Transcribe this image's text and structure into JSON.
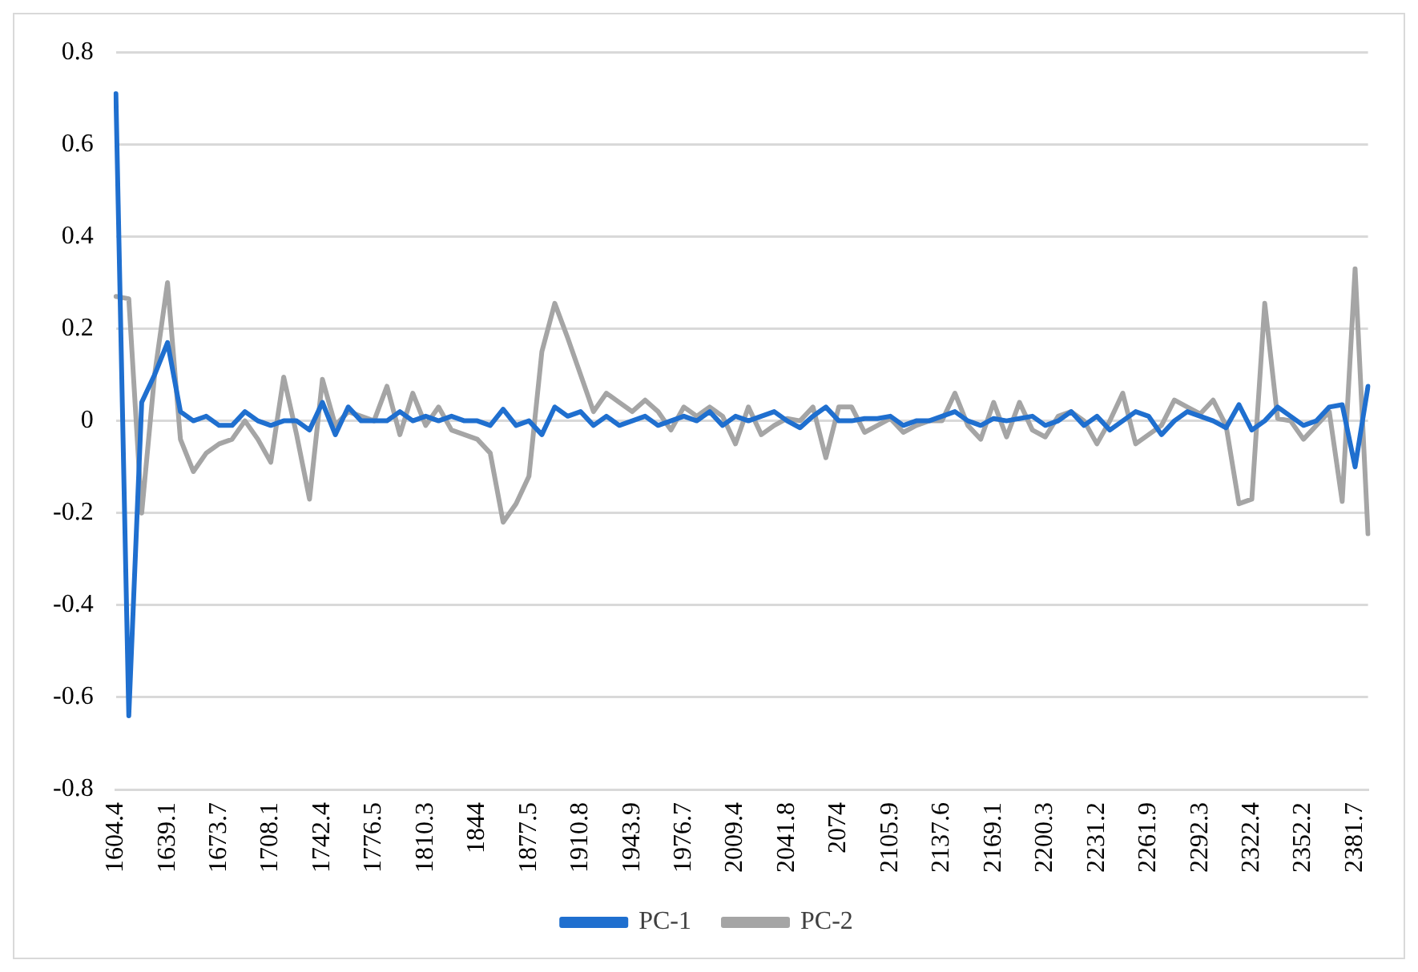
{
  "chart_data": {
    "type": "line",
    "categories": [
      "1604.4",
      null,
      null,
      null,
      "1639.1",
      null,
      null,
      null,
      "1673.7",
      null,
      null,
      null,
      "1708.1",
      null,
      null,
      null,
      "1742.4",
      null,
      null,
      null,
      "1776.5",
      null,
      null,
      null,
      "1810.3",
      null,
      null,
      null,
      "1844",
      null,
      null,
      null,
      "1877.5",
      null,
      null,
      null,
      "1910.8",
      null,
      null,
      null,
      "1943.9",
      null,
      null,
      null,
      "1976.7",
      null,
      null,
      null,
      "2009.4",
      null,
      null,
      null,
      "2041.8",
      null,
      null,
      null,
      "2074",
      null,
      null,
      null,
      "2105.9",
      null,
      null,
      null,
      "2137.6",
      null,
      null,
      null,
      "2169.1",
      null,
      null,
      null,
      "2200.3",
      null,
      null,
      null,
      "2231.2",
      null,
      null,
      null,
      "2261.9",
      null,
      null,
      null,
      "2292.3",
      null,
      null,
      null,
      "2322.4",
      null,
      null,
      null,
      "2352.2",
      null,
      null,
      null,
      "2381.7",
      null
    ],
    "series": [
      {
        "name": "PC-1",
        "color": "#1f6fcf",
        "values": [
          0.71,
          -0.64,
          0.04,
          0.1,
          0.17,
          0.02,
          0.0,
          0.01,
          -0.01,
          -0.01,
          0.02,
          0.0,
          -0.01,
          0.0,
          0.0,
          -0.02,
          0.04,
          -0.03,
          0.03,
          0.0,
          0.0,
          0.0,
          0.02,
          0.0,
          0.01,
          0.0,
          0.01,
          0.0,
          0.0,
          -0.01,
          0.025,
          -0.01,
          0.0,
          -0.03,
          0.03,
          0.01,
          0.02,
          -0.01,
          0.01,
          -0.01,
          0.0,
          0.01,
          -0.01,
          0.0,
          0.01,
          0.0,
          0.02,
          -0.01,
          0.01,
          0.0,
          0.01,
          0.02,
          0.0,
          -0.015,
          0.01,
          0.03,
          0.0,
          0.0,
          0.005,
          0.005,
          0.01,
          -0.01,
          0.0,
          0.0,
          0.01,
          0.02,
          0.0,
          -0.01,
          0.005,
          0.0,
          0.005,
          0.01,
          -0.01,
          0.0,
          0.02,
          -0.01,
          0.01,
          -0.02,
          0.0,
          0.02,
          0.01,
          -0.03,
          0.0,
          0.02,
          0.01,
          0.0,
          -0.015,
          0.035,
          -0.02,
          0.0,
          0.03,
          0.01,
          -0.01,
          0.0,
          0.03,
          0.035,
          -0.1,
          0.075
        ]
      },
      {
        "name": "PC-2",
        "color": "#a5a5a5",
        "values": [
          0.27,
          0.265,
          -0.2,
          0.1,
          0.3,
          -0.04,
          -0.11,
          -0.07,
          -0.05,
          -0.04,
          0.0,
          -0.04,
          -0.09,
          0.095,
          -0.03,
          -0.17,
          0.09,
          -0.01,
          0.02,
          0.01,
          0.0,
          0.075,
          -0.03,
          0.06,
          -0.01,
          0.03,
          -0.02,
          -0.03,
          -0.04,
          -0.07,
          -0.22,
          -0.18,
          -0.12,
          0.15,
          0.255,
          0.18,
          0.1,
          0.02,
          0.06,
          0.04,
          0.02,
          0.045,
          0.02,
          -0.02,
          0.03,
          0.01,
          0.03,
          0.01,
          -0.05,
          0.03,
          -0.03,
          -0.01,
          0.005,
          0.0,
          0.03,
          -0.08,
          0.03,
          0.03,
          -0.025,
          -0.01,
          0.005,
          -0.025,
          -0.01,
          0.0,
          0.0,
          0.06,
          -0.01,
          -0.04,
          0.04,
          -0.035,
          0.04,
          -0.02,
          -0.035,
          0.01,
          0.02,
          0.0,
          -0.05,
          0.0,
          0.06,
          -0.05,
          -0.03,
          -0.01,
          0.045,
          0.03,
          0.015,
          0.045,
          -0.01,
          -0.18,
          -0.17,
          0.255,
          0.005,
          0.0,
          -0.04,
          -0.01,
          0.02,
          -0.175,
          0.33,
          -0.245
        ]
      }
    ],
    "ylim": [
      -0.8,
      0.8
    ],
    "yticks": [
      -0.8,
      -0.6,
      -0.4,
      -0.2,
      0,
      0.2,
      0.4,
      0.6,
      0.8
    ],
    "grid": "y",
    "legend": "bottom",
    "marker": "none",
    "line_style": "solid"
  }
}
